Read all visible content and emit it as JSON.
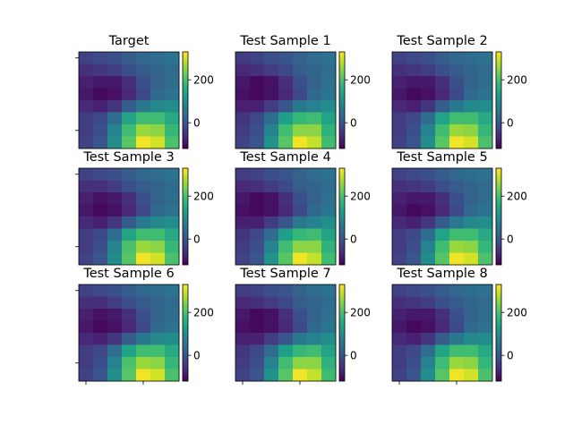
{
  "colormap": [
    "#440154",
    "#482878",
    "#3e4989",
    "#31688e",
    "#26828e",
    "#1f9e89",
    "#35b779",
    "#6ece58",
    "#b5de2b",
    "#fde725"
  ],
  "chart_data": [
    {
      "type": "heatmap",
      "title": "Target",
      "vmin": -120,
      "vmax": 330,
      "colorbar_ticks": [
        0,
        200
      ],
      "values": [
        [
          -30,
          -20,
          -10,
          10,
          30,
          40,
          50
        ],
        [
          -60,
          -50,
          -40,
          -10,
          10,
          25,
          35
        ],
        [
          -80,
          -90,
          -90,
          -60,
          -10,
          20,
          40
        ],
        [
          -90,
          -110,
          -100,
          -70,
          -20,
          30,
          50
        ],
        [
          -70,
          -80,
          -50,
          10,
          60,
          90,
          100
        ],
        [
          -40,
          -20,
          40,
          140,
          190,
          190,
          150
        ],
        [
          -40,
          -10,
          80,
          190,
          260,
          250,
          180
        ],
        [
          -30,
          0,
          100,
          210,
          320,
          300,
          200
        ]
      ]
    },
    {
      "type": "heatmap",
      "title": "Test Sample 1",
      "vmin": -120,
      "vmax": 330,
      "colorbar_ticks": [
        0,
        200
      ],
      "values": [
        [
          -40,
          -30,
          -10,
          0,
          20,
          40,
          50
        ],
        [
          -70,
          -60,
          -40,
          -20,
          10,
          25,
          40
        ],
        [
          -90,
          -110,
          -100,
          -60,
          -10,
          20,
          45
        ],
        [
          -100,
          -110,
          -100,
          -70,
          -20,
          30,
          55
        ],
        [
          -80,
          -80,
          -40,
          0,
          60,
          80,
          100
        ],
        [
          -50,
          -20,
          40,
          130,
          180,
          190,
          140
        ],
        [
          -40,
          -10,
          80,
          190,
          250,
          250,
          170
        ],
        [
          -30,
          0,
          110,
          210,
          320,
          290,
          190
        ]
      ]
    },
    {
      "type": "heatmap",
      "title": "Test Sample 2",
      "vmin": -120,
      "vmax": 330,
      "colorbar_ticks": [
        0,
        200
      ],
      "values": [
        [
          -30,
          -20,
          -10,
          10,
          30,
          40,
          50
        ],
        [
          -60,
          -50,
          -40,
          -10,
          10,
          25,
          35
        ],
        [
          -80,
          -90,
          -90,
          -60,
          -10,
          20,
          40
        ],
        [
          -90,
          -110,
          -100,
          -70,
          -20,
          30,
          50
        ],
        [
          -70,
          -80,
          -50,
          10,
          60,
          90,
          100
        ],
        [
          -40,
          -20,
          40,
          140,
          190,
          190,
          150
        ],
        [
          -40,
          -10,
          80,
          190,
          260,
          250,
          180
        ],
        [
          -30,
          0,
          100,
          210,
          320,
          300,
          200
        ]
      ]
    },
    {
      "type": "heatmap",
      "title": "Test Sample 3",
      "vmin": -120,
      "vmax": 330,
      "colorbar_ticks": [
        0,
        200
      ],
      "values": [
        [
          -30,
          -20,
          -10,
          10,
          30,
          40,
          50
        ],
        [
          -60,
          -60,
          -40,
          -10,
          10,
          25,
          35
        ],
        [
          -80,
          -100,
          -90,
          -60,
          -10,
          20,
          40
        ],
        [
          -90,
          -110,
          -100,
          -70,
          -20,
          30,
          50
        ],
        [
          -70,
          -80,
          -50,
          10,
          60,
          90,
          100
        ],
        [
          -40,
          -20,
          40,
          140,
          190,
          190,
          150
        ],
        [
          -40,
          -10,
          80,
          200,
          260,
          250,
          180
        ],
        [
          -30,
          0,
          100,
          210,
          320,
          300,
          200
        ]
      ]
    },
    {
      "type": "heatmap",
      "title": "Test Sample 4",
      "vmin": -120,
      "vmax": 330,
      "colorbar_ticks": [
        0,
        200
      ],
      "values": [
        [
          -40,
          -30,
          -10,
          0,
          20,
          40,
          50
        ],
        [
          -70,
          -60,
          -40,
          -20,
          10,
          25,
          40
        ],
        [
          -90,
          -110,
          -100,
          -60,
          -10,
          20,
          45
        ],
        [
          -100,
          -110,
          -100,
          -70,
          -20,
          30,
          55
        ],
        [
          -80,
          -80,
          -40,
          0,
          60,
          80,
          100
        ],
        [
          -50,
          -20,
          40,
          130,
          180,
          190,
          140
        ],
        [
          -40,
          -10,
          80,
          190,
          250,
          250,
          170
        ],
        [
          -30,
          0,
          110,
          210,
          320,
          290,
          190
        ]
      ]
    },
    {
      "type": "heatmap",
      "title": "Test Sample 5",
      "vmin": -120,
      "vmax": 330,
      "colorbar_ticks": [
        0,
        200
      ],
      "values": [
        [
          -30,
          -20,
          -10,
          10,
          30,
          40,
          50
        ],
        [
          -60,
          -50,
          -40,
          -10,
          10,
          25,
          35
        ],
        [
          -80,
          -90,
          -90,
          -60,
          -10,
          20,
          40
        ],
        [
          -90,
          -110,
          -100,
          -70,
          -20,
          30,
          50
        ],
        [
          -70,
          -80,
          -50,
          10,
          60,
          90,
          100
        ],
        [
          -40,
          -20,
          40,
          140,
          190,
          190,
          150
        ],
        [
          -40,
          -10,
          80,
          190,
          260,
          250,
          180
        ],
        [
          -30,
          0,
          100,
          210,
          320,
          300,
          200
        ]
      ]
    },
    {
      "type": "heatmap",
      "title": "Test Sample 6",
      "vmin": -120,
      "vmax": 330,
      "colorbar_ticks": [
        0,
        200
      ],
      "values": [
        [
          -30,
          -20,
          -10,
          10,
          30,
          40,
          50
        ],
        [
          -60,
          -60,
          -40,
          -10,
          10,
          25,
          35
        ],
        [
          -80,
          -100,
          -90,
          -60,
          -10,
          20,
          40
        ],
        [
          -90,
          -110,
          -100,
          -70,
          -20,
          30,
          50
        ],
        [
          -70,
          -80,
          -50,
          10,
          60,
          90,
          100
        ],
        [
          -40,
          -20,
          40,
          140,
          190,
          190,
          150
        ],
        [
          -40,
          -10,
          80,
          200,
          260,
          250,
          180
        ],
        [
          -30,
          0,
          100,
          210,
          320,
          300,
          200
        ]
      ]
    },
    {
      "type": "heatmap",
      "title": "Test Sample 7",
      "vmin": -120,
      "vmax": 330,
      "colorbar_ticks": [
        0,
        200
      ],
      "values": [
        [
          -40,
          -30,
          -10,
          0,
          20,
          40,
          50
        ],
        [
          -70,
          -60,
          -40,
          -20,
          10,
          25,
          40
        ],
        [
          -90,
          -110,
          -100,
          -60,
          -10,
          20,
          45
        ],
        [
          -100,
          -110,
          -100,
          -70,
          -20,
          30,
          55
        ],
        [
          -80,
          -80,
          -40,
          0,
          60,
          80,
          100
        ],
        [
          -50,
          -20,
          40,
          130,
          180,
          190,
          140
        ],
        [
          -40,
          -10,
          80,
          190,
          250,
          250,
          170
        ],
        [
          -30,
          0,
          110,
          210,
          320,
          290,
          190
        ]
      ]
    },
    {
      "type": "heatmap",
      "title": "Test Sample 8",
      "vmin": -120,
      "vmax": 330,
      "colorbar_ticks": [
        0,
        200
      ],
      "values": [
        [
          -30,
          -20,
          -10,
          10,
          30,
          40,
          50
        ],
        [
          -60,
          -50,
          -40,
          -10,
          10,
          25,
          35
        ],
        [
          -80,
          -90,
          -90,
          -60,
          -10,
          20,
          40
        ],
        [
          -90,
          -110,
          -100,
          -70,
          -20,
          30,
          50
        ],
        [
          -70,
          -80,
          -50,
          10,
          60,
          90,
          100
        ],
        [
          -40,
          -20,
          40,
          140,
          190,
          190,
          150
        ],
        [
          -40,
          -10,
          80,
          190,
          260,
          250,
          180
        ],
        [
          -30,
          0,
          100,
          210,
          320,
          300,
          200
        ]
      ]
    }
  ]
}
